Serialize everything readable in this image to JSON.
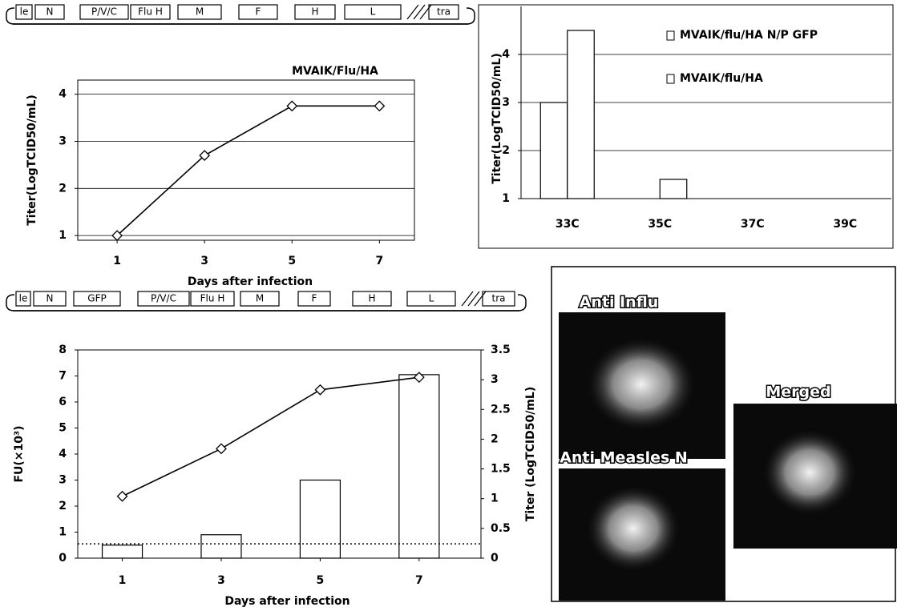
{
  "genome_maps": [
    {
      "segments": [
        "le",
        "N",
        "P/V/C",
        "Flu H",
        "M",
        "F",
        "H",
        "L",
        "tra"
      ]
    },
    {
      "segments": [
        "le",
        "N",
        "GFP",
        "P/V/C",
        "Flu H",
        "M",
        "F",
        "H",
        "L",
        "tra"
      ]
    }
  ],
  "chart_data": [
    {
      "type": "line",
      "title": "MVAIK/Flu/HA",
      "x_label": "Days after infection",
      "y_label": "Titer(LogTCID50/mL)",
      "x": [
        1,
        3,
        5,
        7
      ],
      "values": [
        1,
        2.7,
        3.75,
        3.75
      ],
      "color": "#000000",
      "xlim": [
        0.1,
        7.8
      ],
      "xticks": [
        1,
        3,
        5,
        7
      ],
      "ylim": [
        0.9,
        4.3
      ],
      "yticks": [
        1,
        2,
        3,
        4
      ],
      "grid": true
    },
    {
      "type": "bar",
      "y_label": "Titer(LogTCID50/mL)",
      "categories": [
        "33C",
        "35C",
        "37C",
        "39C"
      ],
      "series": [
        {
          "name": "MVAIK/flu/HA N/P GFP",
          "color": "#ffffff",
          "values": [
            3.0,
            null,
            null,
            null
          ]
        },
        {
          "name": "MVAIK/flu/HA",
          "color": "#ffffff",
          "values": [
            4.5,
            1.4,
            null,
            null
          ]
        }
      ],
      "ylim": [
        1,
        5
      ],
      "yticks": [
        1,
        2,
        3,
        4
      ],
      "grid": true,
      "legend": "top-right"
    },
    {
      "type": "bar_line",
      "x_label": "Days after infection",
      "y_label": "FU(×10³)",
      "y2_label": "Titer (LogTCID50/mL)",
      "x": [
        1,
        3,
        5,
        7
      ],
      "series": [
        {
          "type": "bar",
          "color": "#ffffff",
          "values": [
            0.5,
            0.9,
            3.0,
            7.05
          ]
        },
        {
          "type": "line",
          "axis": "y2",
          "color": "#000000",
          "values": [
            1.04,
            1.84,
            2.83,
            3.04
          ]
        }
      ],
      "threshold": 0.55,
      "xlim": [
        0.1,
        8.25
      ],
      "xticks": [
        1,
        3,
        5,
        7
      ],
      "ylim": [
        0,
        8
      ],
      "yticks": [
        0,
        1,
        2,
        3,
        4,
        5,
        6,
        7,
        8
      ],
      "y2lim": [
        0,
        3.5
      ],
      "y2ticks": [
        0,
        0.5,
        1,
        1.5,
        2,
        2.5,
        3,
        3.5
      ]
    }
  ],
  "micrographs": {
    "labels": [
      "Anti Influ",
      "Anti Measles N",
      "Merged"
    ]
  }
}
